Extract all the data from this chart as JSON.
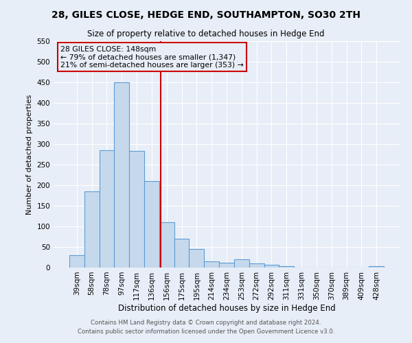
{
  "title": "28, GILES CLOSE, HEDGE END, SOUTHAMPTON, SO30 2TH",
  "subtitle": "Size of property relative to detached houses in Hedge End",
  "xlabel": "Distribution of detached houses by size in Hedge End",
  "ylabel": "Number of detached properties",
  "footer_line1": "Contains HM Land Registry data © Crown copyright and database right 2024.",
  "footer_line2": "Contains public sector information licensed under the Open Government Licence v3.0.",
  "categories": [
    "39sqm",
    "58sqm",
    "78sqm",
    "97sqm",
    "117sqm",
    "136sqm",
    "156sqm",
    "175sqm",
    "195sqm",
    "214sqm",
    "234sqm",
    "253sqm",
    "272sqm",
    "292sqm",
    "311sqm",
    "331sqm",
    "350sqm",
    "370sqm",
    "389sqm",
    "409sqm",
    "428sqm"
  ],
  "values": [
    30,
    185,
    285,
    450,
    283,
    210,
    110,
    70,
    45,
    15,
    12,
    20,
    10,
    7,
    4,
    0,
    0,
    0,
    0,
    0,
    3
  ],
  "bar_color": "#c6d9ec",
  "bar_edge_color": "#5b9bd5",
  "ylim": [
    0,
    550
  ],
  "yticks": [
    0,
    50,
    100,
    150,
    200,
    250,
    300,
    350,
    400,
    450,
    500,
    550
  ],
  "vline_color": "#cc0000",
  "vline_pos": 5.58,
  "annotation_title": "28 GILES CLOSE: 148sqm",
  "annotation_line1": "← 79% of detached houses are smaller (1,347)",
  "annotation_line2": "21% of semi-detached houses are larger (353) →",
  "annotation_box_color": "#cc0000",
  "background_color": "#e8eef7",
  "grid_color": "#ffffff",
  "title_fontsize": 10,
  "subtitle_fontsize": 8.5,
  "ylabel_fontsize": 8,
  "xlabel_fontsize": 8.5,
  "tick_fontsize": 7.5,
  "footer_fontsize": 6.2,
  "annotation_fontsize": 7.8
}
